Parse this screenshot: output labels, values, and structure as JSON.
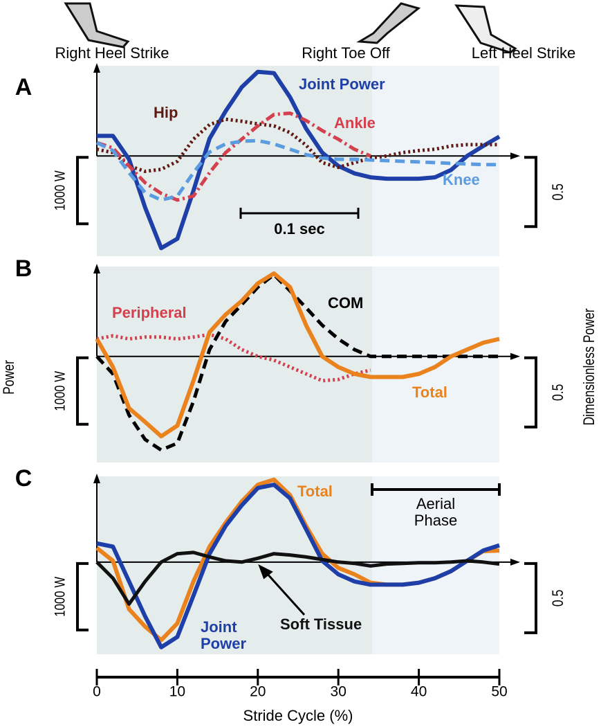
{
  "events": [
    "Right Heel Strike",
    "Right Toe Off",
    "Left Heel Strike"
  ],
  "chart_data": [
    {
      "type": "line",
      "label": "A",
      "scale_bar": "1000 W",
      "scale_bar_right": "0.5",
      "time_scale": "0.1 sec",
      "xlim": [
        0,
        50
      ],
      "ylim": [
        -1500,
        1350
      ],
      "x": [
        0,
        2,
        4,
        6,
        8,
        10,
        12,
        14,
        16,
        18,
        20,
        22,
        24,
        26,
        28,
        30,
        32,
        34,
        36,
        38,
        40,
        42,
        44,
        46,
        48,
        50
      ],
      "series": [
        {
          "name": "Joint Power",
          "color": "#1f3fa8",
          "linestyle": "solid",
          "values": [
            300,
            300,
            -50,
            -770,
            -1380,
            -1240,
            -520,
            260,
            670,
            1030,
            1260,
            1240,
            880,
            410,
            50,
            -150,
            -260,
            -320,
            -340,
            -340,
            -340,
            -320,
            -210,
            0,
            150,
            290
          ]
        },
        {
          "name": "Hip",
          "color": "#5e1a12",
          "linestyle": "dotted",
          "values": [
            100,
            50,
            -150,
            -230,
            -200,
            -80,
            250,
            470,
            550,
            520,
            480,
            450,
            350,
            160,
            -100,
            -170,
            -100,
            -30,
            0,
            50,
            80,
            100,
            150,
            170,
            170,
            170
          ]
        },
        {
          "name": "Ankle",
          "color": "#d3404e",
          "linestyle": "dashdot",
          "values": [
            200,
            120,
            -150,
            -400,
            -560,
            -660,
            -600,
            -250,
            50,
            250,
            450,
            620,
            640,
            530,
            380,
            250,
            100,
            0,
            null,
            null,
            null,
            null,
            null,
            null,
            null,
            null
          ]
        },
        {
          "name": "Knee",
          "color": "#5b9be0",
          "linestyle": "dashed",
          "values": [
            200,
            80,
            -250,
            -550,
            -660,
            -600,
            -250,
            60,
            180,
            220,
            230,
            180,
            100,
            20,
            -30,
            -50,
            -50,
            -60,
            -70,
            -80,
            -90,
            -100,
            -110,
            -120,
            -130,
            -130
          ]
        }
      ]
    },
    {
      "type": "line",
      "label": "B",
      "scale_bar": "1000 W",
      "scale_bar_right": "0.5",
      "ylabel": "Power",
      "y2label": "Dimensionless Power",
      "xlim": [
        0,
        50
      ],
      "ylim": [
        -1700,
        1440
      ],
      "x": [
        0,
        2,
        4,
        6,
        8,
        10,
        12,
        14,
        16,
        18,
        20,
        22,
        24,
        26,
        28,
        30,
        32,
        34,
        36,
        38,
        40,
        42,
        44,
        46,
        48,
        50
      ],
      "series": [
        {
          "name": "Peripheral",
          "color": "#d3404e",
          "linestyle": "dotted",
          "values": [
            280,
            330,
            280,
            310,
            310,
            280,
            310,
            350,
            280,
            110,
            0,
            -60,
            -170,
            -280,
            -390,
            -370,
            -280,
            -220,
            null,
            null,
            null,
            null,
            null,
            null,
            null,
            null
          ]
        },
        {
          "name": "COM",
          "color": "#000000",
          "linestyle": "dashed",
          "values": [
            0,
            -280,
            -940,
            -1330,
            -1500,
            -1390,
            -720,
            110,
            560,
            830,
            1110,
            1310,
            1050,
            780,
            500,
            280,
            110,
            0,
            0,
            0,
            0,
            0,
            0,
            0,
            0,
            0
          ]
        },
        {
          "name": "Total",
          "color": "#ea821e",
          "linestyle": "solid",
          "values": [
            280,
            -170,
            -830,
            -1050,
            -1280,
            -1110,
            -390,
            390,
            670,
            890,
            1170,
            1330,
            1110,
            500,
            0,
            -170,
            -280,
            -330,
            -330,
            -330,
            -280,
            -170,
            0,
            110,
            220,
            280
          ]
        }
      ]
    },
    {
      "type": "line",
      "label": "C",
      "scale_bar": "1000 W",
      "scale_bar_right": "0.5",
      "phase_label": "Aerial Phase",
      "xlabel": "Stride Cycle (%)",
      "xticks": [
        0,
        10,
        20,
        30,
        40,
        50
      ],
      "xlim": [
        0,
        50
      ],
      "ylim": [
        -1430,
        1330
      ],
      "x": [
        0,
        2,
        4,
        6,
        8,
        10,
        12,
        14,
        16,
        18,
        20,
        22,
        24,
        26,
        28,
        30,
        32,
        34,
        36,
        38,
        40,
        42,
        44,
        46,
        48,
        50
      ],
      "series": [
        {
          "name": "Total",
          "color": "#ea821e",
          "linestyle": "solid",
          "values": [
            220,
            20,
            -730,
            -1000,
            -1210,
            -950,
            -300,
            240,
            610,
            940,
            1200,
            1280,
            1040,
            560,
            130,
            -90,
            -190,
            -320,
            -350,
            -350,
            -320,
            -250,
            -140,
            20,
            170,
            180
          ]
        },
        {
          "name": "Joint Power",
          "color": "#1f3fa8",
          "linestyle": "solid",
          "values": [
            290,
            240,
            -300,
            -840,
            -1320,
            -1160,
            -520,
            130,
            560,
            880,
            1150,
            1200,
            990,
            510,
            20,
            -190,
            -300,
            -350,
            -350,
            -350,
            -320,
            -250,
            -140,
            20,
            180,
            260
          ]
        },
        {
          "name": "Soft Tissue",
          "color": "#111111",
          "linestyle": "solid",
          "values": [
            0,
            -250,
            -650,
            -300,
            0,
            130,
            150,
            80,
            20,
            0,
            60,
            130,
            110,
            80,
            40,
            0,
            -20,
            -60,
            -30,
            -20,
            -10,
            -10,
            0,
            20,
            0,
            -30
          ]
        }
      ]
    }
  ]
}
